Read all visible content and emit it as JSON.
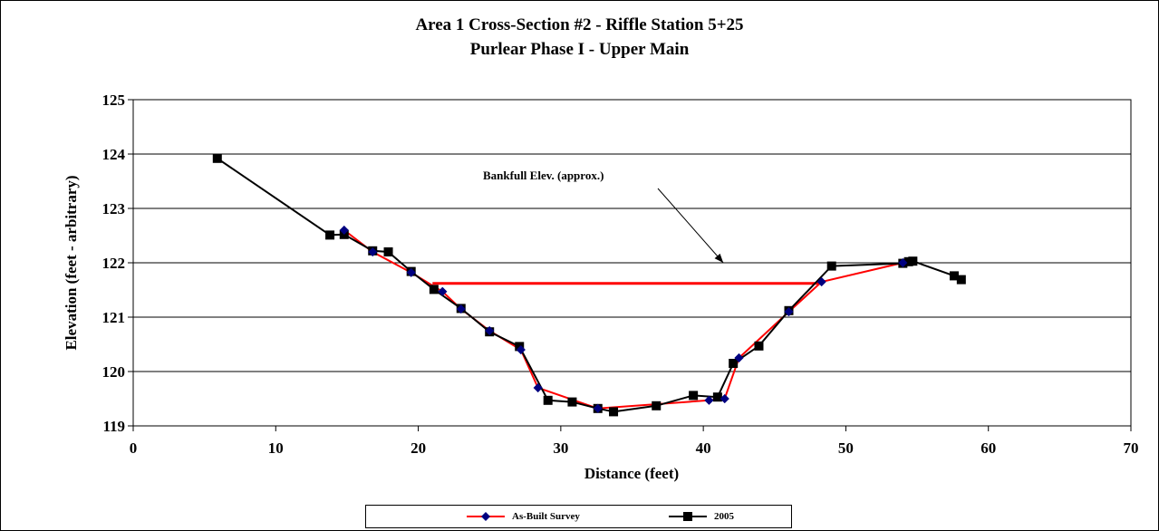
{
  "chart_data": {
    "type": "line",
    "title": "Area 1 Cross-Section #2 - Riffle Station 5+25",
    "subtitle": "Purlear Phase I - Upper Main",
    "xlabel": "Distance (feet)",
    "ylabel": "Elevation (feet - arbitrary)",
    "xlim": [
      0,
      70
    ],
    "ylim": [
      119,
      125
    ],
    "xticks": [
      "0",
      "10",
      "20",
      "30",
      "40",
      "50",
      "60",
      "70"
    ],
    "yticks": [
      "119",
      "120",
      "121",
      "122",
      "123",
      "124",
      "125"
    ],
    "grid": "horizontal",
    "legend_position": "bottom",
    "series": [
      {
        "name": "As-Built Survey",
        "color": "#ff0000",
        "marker": "diamond",
        "marker_color": "#000080",
        "x": [
          14.8,
          16.8,
          19.5,
          21.7,
          23.0,
          25.0,
          27.2,
          28.4,
          32.6,
          40.4,
          41.5,
          42.5,
          46.0,
          48.3,
          54.0
        ],
        "y": [
          122.6,
          122.2,
          121.82,
          121.47,
          121.15,
          120.75,
          120.4,
          119.7,
          119.32,
          119.47,
          119.5,
          120.25,
          121.1,
          121.65,
          122.0
        ]
      },
      {
        "name": "2005",
        "color": "#000000",
        "marker": "square",
        "marker_color": "#000000",
        "x": [
          5.9,
          13.8,
          14.8,
          16.8,
          17.9,
          19.5,
          21.1,
          23.0,
          25.0,
          27.1,
          29.1,
          30.8,
          32.6,
          33.7,
          36.7,
          39.3,
          41.0,
          42.1,
          43.9,
          46.0,
          49.0,
          54.0,
          54.4,
          54.7,
          57.6,
          58.1
        ],
        "y": [
          123.92,
          122.51,
          122.52,
          122.22,
          122.2,
          121.84,
          121.51,
          121.16,
          120.73,
          120.46,
          119.47,
          119.44,
          119.32,
          119.26,
          119.37,
          119.56,
          119.53,
          120.15,
          120.47,
          121.12,
          121.94,
          121.99,
          122.02,
          122.03,
          121.76,
          121.69
        ]
      },
      {
        "name": "",
        "color": "#ff0000",
        "marker": "none",
        "x": [
          21.0,
          48.4
        ],
        "y": [
          121.62,
          121.62
        ]
      }
    ],
    "annotations": [
      {
        "text": "Bankfull Elev. (approx.)",
        "arrow_target": [
          41.4,
          122.0
        ]
      }
    ]
  }
}
